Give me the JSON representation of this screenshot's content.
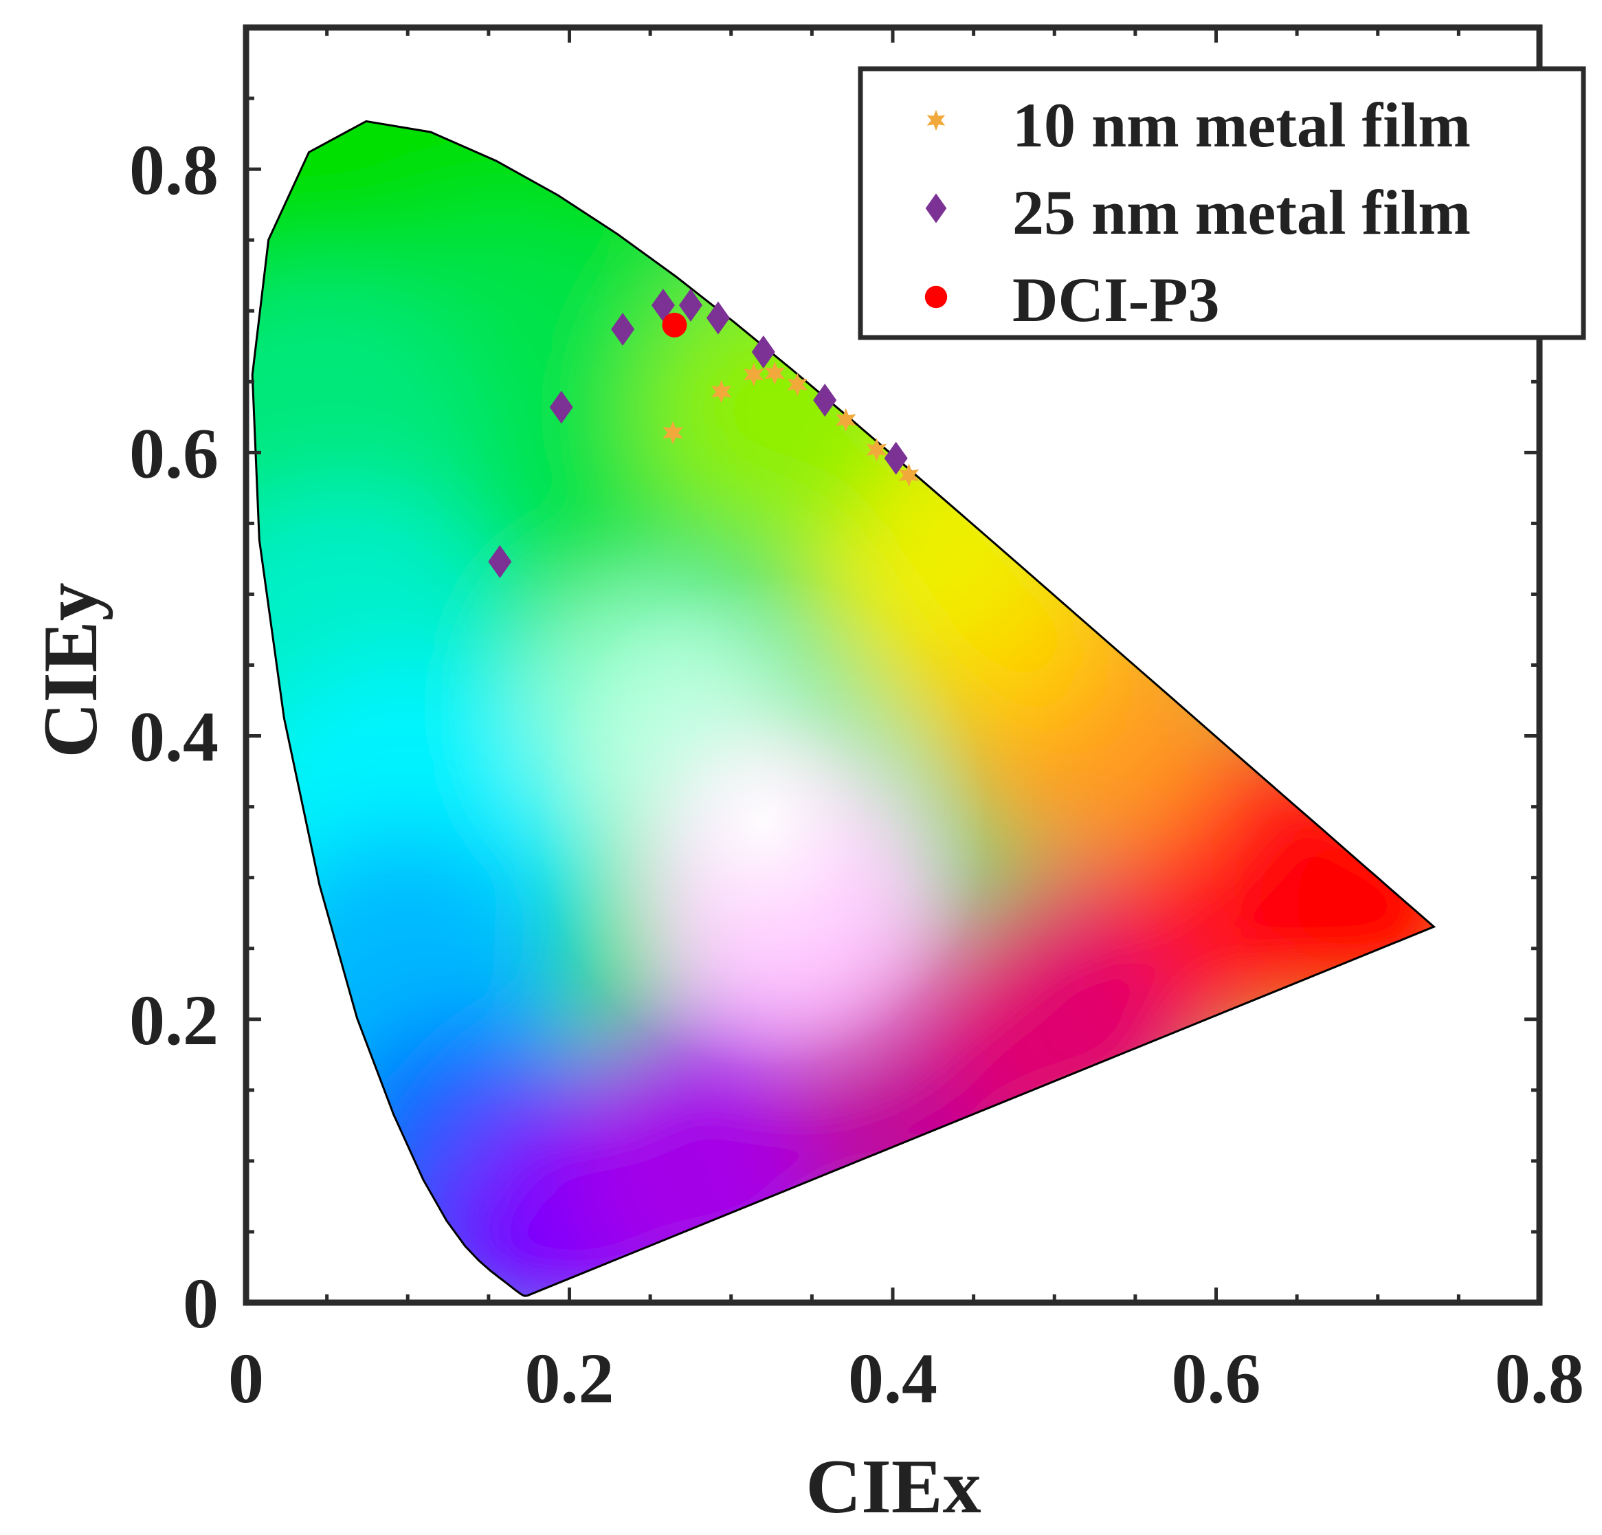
{
  "chart_data": {
    "type": "scatter",
    "title": "",
    "xlabel": "CIEx",
    "ylabel": "CIEy",
    "xlim": [
      0,
      0.8
    ],
    "ylim": [
      0,
      0.9
    ],
    "xticks": [
      0,
      0.2,
      0.4,
      0.6,
      0.8
    ],
    "yticks": [
      0,
      0.2,
      0.4,
      0.6,
      0.8
    ],
    "xtick_labels": [
      "0",
      "0.2",
      "0.4",
      "0.6",
      "0.8"
    ],
    "ytick_labels": [
      "0",
      "0.2",
      "0.4",
      "0.6",
      "0.8"
    ],
    "legend_position": "top-right",
    "background": "CIE 1931 chromaticity diagram",
    "locus": [
      [
        0.1741,
        0.005
      ],
      [
        0.1738,
        0.0049
      ],
      [
        0.1736,
        0.0049
      ],
      [
        0.173,
        0.0048
      ],
      [
        0.1721,
        0.0048
      ],
      [
        0.1703,
        0.0058
      ],
      [
        0.1666,
        0.0089
      ],
      [
        0.1611,
        0.0138
      ],
      [
        0.1566,
        0.0177
      ],
      [
        0.151,
        0.0227
      ],
      [
        0.144,
        0.0297
      ],
      [
        0.1355,
        0.0399
      ],
      [
        0.1241,
        0.0578
      ],
      [
        0.1096,
        0.0868
      ],
      [
        0.0913,
        0.1327
      ],
      [
        0.0687,
        0.2007
      ],
      [
        0.0454,
        0.295
      ],
      [
        0.0235,
        0.4127
      ],
      [
        0.0082,
        0.5384
      ],
      [
        0.0039,
        0.6548
      ],
      [
        0.0139,
        0.7502
      ],
      [
        0.0389,
        0.812
      ],
      [
        0.0743,
        0.8338
      ],
      [
        0.1142,
        0.8262
      ],
      [
        0.1547,
        0.8059
      ],
      [
        0.1929,
        0.7816
      ],
      [
        0.2296,
        0.7543
      ],
      [
        0.2658,
        0.7243
      ],
      [
        0.3016,
        0.6923
      ],
      [
        0.3373,
        0.6589
      ],
      [
        0.3731,
        0.6245
      ],
      [
        0.4087,
        0.5896
      ],
      [
        0.4441,
        0.5547
      ],
      [
        0.4788,
        0.5202
      ],
      [
        0.5125,
        0.4866
      ],
      [
        0.5448,
        0.4544
      ],
      [
        0.5752,
        0.4242
      ],
      [
        0.6029,
        0.3965
      ],
      [
        0.627,
        0.3725
      ],
      [
        0.6482,
        0.3514
      ],
      [
        0.6658,
        0.334
      ],
      [
        0.6801,
        0.3197
      ],
      [
        0.6915,
        0.3083
      ],
      [
        0.7006,
        0.2993
      ],
      [
        0.7079,
        0.292
      ],
      [
        0.714,
        0.2859
      ],
      [
        0.719,
        0.2809
      ],
      [
        0.723,
        0.277
      ],
      [
        0.726,
        0.274
      ],
      [
        0.7283,
        0.2717
      ],
      [
        0.73,
        0.27
      ],
      [
        0.7347,
        0.2653
      ]
    ],
    "series": [
      {
        "name": "10 nm metal film",
        "marker": "star",
        "color": "#F2A93B",
        "points": [
          [
            0.264,
            0.614
          ],
          [
            0.294,
            0.643
          ],
          [
            0.314,
            0.655
          ],
          [
            0.327,
            0.656
          ],
          [
            0.341,
            0.648
          ],
          [
            0.371,
            0.623
          ],
          [
            0.39,
            0.602
          ],
          [
            0.41,
            0.584
          ]
        ]
      },
      {
        "name": "25 nm metal film",
        "marker": "diamond",
        "color": "#7B3294",
        "points": [
          [
            0.157,
            0.523
          ],
          [
            0.195,
            0.632
          ],
          [
            0.233,
            0.687
          ],
          [
            0.258,
            0.704
          ],
          [
            0.275,
            0.704
          ],
          [
            0.292,
            0.695
          ],
          [
            0.32,
            0.671
          ],
          [
            0.358,
            0.637
          ],
          [
            0.402,
            0.596
          ]
        ]
      },
      {
        "name": "DCI-P3",
        "marker": "circle",
        "color": "#FF0000",
        "points": [
          [
            0.265,
            0.69
          ]
        ]
      }
    ]
  }
}
